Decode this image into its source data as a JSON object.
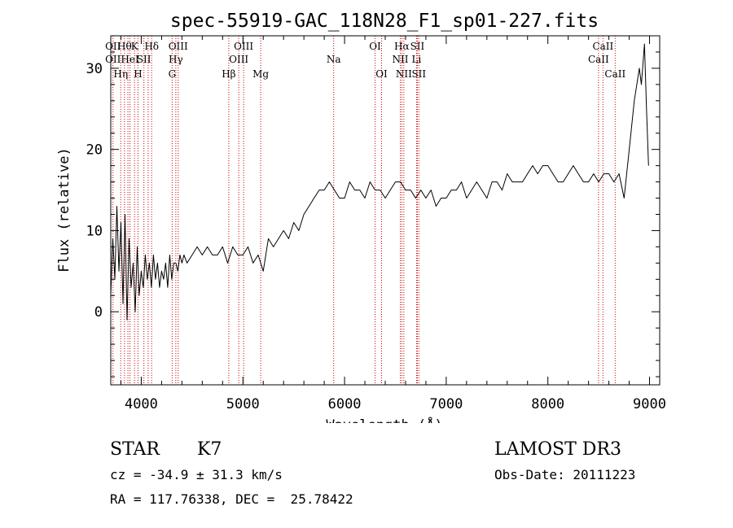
{
  "chart_data": {
    "type": "line",
    "title": "spec-55919-GAC_118N28_F1_sp01-227.fits",
    "xlabel": "Wavelength (Å)",
    "ylabel": "Flux (relative)",
    "xlim": [
      3700,
      9100
    ],
    "ylim": [
      -9,
      34
    ],
    "xticks": [
      4000,
      5000,
      6000,
      7000,
      8000,
      9000
    ],
    "yticks": [
      0,
      10,
      20,
      30
    ],
    "series": [
      {
        "name": "spectrum",
        "x": [
          3700,
          3720,
          3740,
          3760,
          3780,
          3800,
          3820,
          3840,
          3860,
          3880,
          3900,
          3920,
          3940,
          3960,
          3980,
          4000,
          4020,
          4040,
          4060,
          4080,
          4100,
          4120,
          4140,
          4160,
          4180,
          4200,
          4220,
          4240,
          4260,
          4280,
          4300,
          4320,
          4340,
          4360,
          4380,
          4400,
          4420,
          4450,
          4500,
          4550,
          4600,
          4650,
          4700,
          4750,
          4800,
          4850,
          4900,
          4950,
          5000,
          5050,
          5100,
          5150,
          5200,
          5250,
          5300,
          5350,
          5400,
          5450,
          5500,
          5550,
          5600,
          5650,
          5700,
          5750,
          5800,
          5850,
          5900,
          5950,
          6000,
          6050,
          6100,
          6150,
          6200,
          6250,
          6300,
          6350,
          6400,
          6450,
          6500,
          6550,
          6600,
          6650,
          6700,
          6750,
          6800,
          6850,
          6900,
          6950,
          7000,
          7050,
          7100,
          7150,
          7200,
          7250,
          7300,
          7350,
          7400,
          7450,
          7500,
          7550,
          7600,
          7650,
          7700,
          7750,
          7800,
          7850,
          7900,
          7950,
          8000,
          8050,
          8100,
          8150,
          8200,
          8250,
          8300,
          8350,
          8400,
          8450,
          8500,
          8550,
          8600,
          8650,
          8700,
          8750,
          8800,
          8850,
          8900,
          8920,
          8950,
          8970,
          8990
        ],
        "values": [
          2,
          9,
          4,
          13,
          5,
          11,
          1,
          12,
          -1,
          9,
          3,
          6,
          0,
          8,
          2,
          5,
          3,
          7,
          4,
          6,
          3,
          7,
          4,
          6,
          3,
          5,
          4,
          6,
          3,
          7,
          4,
          6,
          6,
          5,
          7,
          6,
          7,
          6,
          7,
          8,
          7,
          8,
          7,
          7,
          8,
          6,
          8,
          7,
          7,
          8,
          6,
          7,
          5,
          9,
          8,
          9,
          10,
          9,
          11,
          10,
          12,
          13,
          14,
          15,
          15,
          16,
          15,
          14,
          14,
          16,
          15,
          15,
          14,
          16,
          15,
          15,
          14,
          15,
          16,
          16,
          15,
          15,
          14,
          15,
          14,
          15,
          13,
          14,
          14,
          15,
          15,
          16,
          14,
          15,
          16,
          15,
          14,
          16,
          16,
          15,
          17,
          16,
          16,
          16,
          17,
          18,
          17,
          18,
          18,
          17,
          16,
          16,
          17,
          18,
          17,
          16,
          16,
          17,
          16,
          17,
          17,
          16,
          17,
          14,
          20,
          26,
          30,
          28,
          33,
          25,
          18
        ]
      }
    ],
    "lines": [
      {
        "wl": 3722,
        "top": "OII",
        "mid": "OII",
        "bot": ""
      },
      {
        "wl": 3798,
        "top": "",
        "mid": "",
        "bot": "Hη"
      },
      {
        "wl": 3835,
        "top": "Hθ",
        "mid": "",
        "bot": ""
      },
      {
        "wl": 3869,
        "top": "",
        "mid": "",
        "bot": ""
      },
      {
        "wl": 3889,
        "top": "",
        "mid": "HeI",
        "bot": ""
      },
      {
        "wl": 3934,
        "top": "K",
        "mid": "",
        "bot": ""
      },
      {
        "wl": 3968,
        "top": "",
        "mid": "",
        "bot": "H"
      },
      {
        "wl": 4026,
        "top": "",
        "mid": "SII",
        "bot": ""
      },
      {
        "wl": 4068,
        "top": "",
        "mid": "",
        "bot": ""
      },
      {
        "wl": 4102,
        "top": "Hδ",
        "mid": "",
        "bot": ""
      },
      {
        "wl": 4304,
        "top": "",
        "mid": "",
        "bot": "G"
      },
      {
        "wl": 4340,
        "top": "",
        "mid": "Hγ",
        "bot": ""
      },
      {
        "wl": 4363,
        "top": "OIII",
        "mid": "",
        "bot": ""
      },
      {
        "wl": 4861,
        "top": "",
        "mid": "",
        "bot": "Hβ"
      },
      {
        "wl": 4959,
        "top": "",
        "mid": "OIII",
        "bot": ""
      },
      {
        "wl": 5007,
        "top": "OIII",
        "mid": "",
        "bot": ""
      },
      {
        "wl": 5175,
        "top": "",
        "mid": "",
        "bot": "Mg"
      },
      {
        "wl": 5893,
        "top": "",
        "mid": "Na",
        "bot": ""
      },
      {
        "wl": 6300,
        "top": "OI",
        "mid": "",
        "bot": ""
      },
      {
        "wl": 6364,
        "top": "",
        "mid": "",
        "bot": "OI"
      },
      {
        "wl": 6548,
        "top": "",
        "mid": "NII",
        "bot": ""
      },
      {
        "wl": 6563,
        "top": "Hα",
        "mid": "",
        "bot": ""
      },
      {
        "wl": 6583,
        "top": "",
        "mid": "",
        "bot": "NII"
      },
      {
        "wl": 6708,
        "top": "",
        "mid": "Li",
        "bot": ""
      },
      {
        "wl": 6716,
        "top": "SII",
        "mid": "",
        "bot": ""
      },
      {
        "wl": 6731,
        "top": "",
        "mid": "",
        "bot": "SII"
      },
      {
        "wl": 8498,
        "top": "",
        "mid": "CaII",
        "bot": ""
      },
      {
        "wl": 8542,
        "top": "CaII",
        "mid": "",
        "bot": ""
      },
      {
        "wl": 8662,
        "top": "",
        "mid": "",
        "bot": "CaII"
      }
    ]
  },
  "info": {
    "class": "STAR",
    "subclass": "K7",
    "survey": "LAMOST DR3",
    "cz": "cz = -34.9 ± 31.3 km/s",
    "obs_date": "Obs-Date: 20111223",
    "radec": "RA = 117.76338, DEC =  25.78422"
  },
  "colors": {
    "axis": "#000000",
    "line": "#000000",
    "marker": "#cc0000"
  }
}
